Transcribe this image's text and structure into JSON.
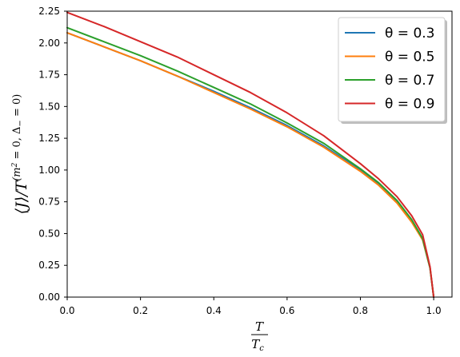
{
  "chart_data": {
    "type": "line",
    "xlabel": {
      "numerator": "T",
      "denominator": "T",
      "denominator_sub": "c"
    },
    "ylabel": "⟨J⟩/T^(m²=0, Δ₋=0)",
    "ylabel_parts": {
      "main": "⟨J⟩/T",
      "sup_open": "(",
      "sup_m": "m",
      "sup_2": "2",
      "sup_eq1": " = 0, ",
      "sup_delta": "Δ",
      "sup_minus": "−",
      "sup_eq2": " = 0)"
    },
    "xlim": [
      0.0,
      1.05
    ],
    "ylim": [
      0.0,
      2.25
    ],
    "xticks": [
      "0.0",
      "0.2",
      "0.4",
      "0.6",
      "0.8",
      "1.0"
    ],
    "yticks": [
      "0.00",
      "0.25",
      "0.50",
      "0.75",
      "1.00",
      "1.25",
      "1.50",
      "1.75",
      "2.00",
      "2.25"
    ],
    "grid": false,
    "legend_position": "top-right",
    "series": [
      {
        "name": "θ = 0.3",
        "color": "#1f77b4",
        "x": [
          0,
          0.1,
          0.2,
          0.3,
          0.4,
          0.5,
          0.6,
          0.7,
          0.8,
          0.85,
          0.9,
          0.94,
          0.97,
          0.99,
          1.0
        ],
        "y": [
          2.08,
          1.97,
          1.86,
          1.74,
          1.62,
          1.49,
          1.35,
          1.19,
          1.0,
          0.89,
          0.75,
          0.6,
          0.45,
          0.23,
          0.0
        ]
      },
      {
        "name": "θ = 0.5",
        "color": "#ff7f0e",
        "x": [
          0,
          0.1,
          0.2,
          0.3,
          0.4,
          0.5,
          0.6,
          0.7,
          0.8,
          0.85,
          0.9,
          0.94,
          0.97,
          0.99,
          1.0
        ],
        "y": [
          2.08,
          1.97,
          1.86,
          1.74,
          1.61,
          1.48,
          1.34,
          1.18,
          0.99,
          0.88,
          0.74,
          0.59,
          0.45,
          0.23,
          0.0
        ]
      },
      {
        "name": "θ = 0.7",
        "color": "#2ca02c",
        "x": [
          0,
          0.1,
          0.2,
          0.3,
          0.4,
          0.5,
          0.6,
          0.7,
          0.8,
          0.85,
          0.9,
          0.94,
          0.97,
          0.99,
          1.0
        ],
        "y": [
          2.12,
          2.01,
          1.9,
          1.78,
          1.65,
          1.52,
          1.37,
          1.21,
          1.01,
          0.9,
          0.76,
          0.61,
          0.46,
          0.23,
          0.0
        ]
      },
      {
        "name": "θ = 0.9",
        "color": "#d62728",
        "x": [
          0,
          0.1,
          0.2,
          0.3,
          0.4,
          0.5,
          0.6,
          0.7,
          0.8,
          0.85,
          0.9,
          0.94,
          0.97,
          0.99,
          1.0
        ],
        "y": [
          2.24,
          2.13,
          2.01,
          1.89,
          1.75,
          1.61,
          1.45,
          1.27,
          1.05,
          0.93,
          0.79,
          0.64,
          0.49,
          0.24,
          0.0
        ]
      }
    ]
  }
}
